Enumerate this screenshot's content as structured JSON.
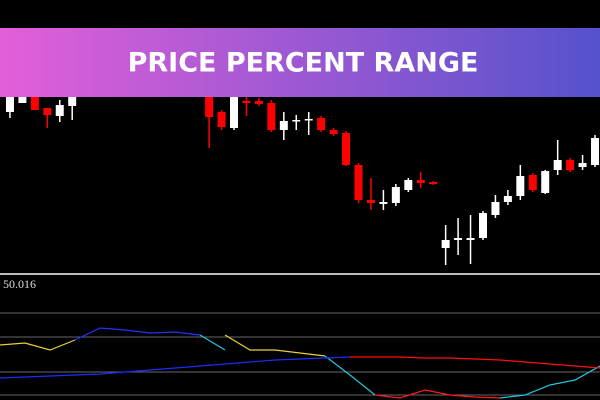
{
  "chart_data": [
    {
      "type": "candlestick",
      "title": "PRICE PERCENT RANGE",
      "x": [
        0,
        1,
        2,
        3,
        4,
        5,
        16,
        17,
        18,
        19,
        20,
        21,
        22,
        23,
        24,
        25,
        26,
        27,
        28,
        29,
        30,
        31,
        32,
        33,
        34,
        35,
        36,
        37,
        38,
        39,
        40,
        41,
        42,
        43,
        44,
        45,
        46,
        47
      ],
      "open": [
        158,
        167,
        173,
        162,
        154,
        164,
        173,
        158,
        142,
        169,
        169,
        167,
        140,
        149,
        150,
        152,
        140,
        137,
        105,
        70,
        66,
        67,
        80,
        90,
        88,
        22,
        30,
        30,
        32,
        55,
        68,
        74,
        95,
        77,
        100,
        110,
        103,
        105
      ],
      "high": [
        178,
        173,
        175,
        162,
        170,
        176,
        178,
        160,
        176,
        173,
        172,
        170,
        158,
        155,
        158,
        154,
        142,
        139,
        107,
        92,
        80,
        86,
        92,
        98,
        89,
        45,
        52,
        55,
        59,
        75,
        80,
        105,
        97,
        100,
        130,
        112,
        115,
        135
      ],
      "low": [
        152,
        167,
        160,
        142,
        148,
        150,
        122,
        140,
        140,
        154,
        164,
        138,
        130,
        140,
        135,
        138,
        134,
        104,
        67,
        60,
        60,
        64,
        78,
        82,
        85,
        5,
        15,
        6,
        30,
        52,
        65,
        70,
        78,
        76,
        95,
        98,
        100,
        103
      ],
      "close": [
        173,
        173,
        160,
        155,
        165,
        173,
        153,
        143,
        173,
        167,
        166,
        140,
        149,
        150,
        151,
        140,
        136,
        105,
        70,
        67,
        68,
        83,
        90,
        87,
        86,
        30,
        32,
        32,
        57,
        68,
        74,
        94,
        80,
        99,
        110,
        100,
        107,
        132
      ],
      "up_color": "#ffffff",
      "down_color": "#ff0000",
      "xlim": [
        -0.8,
        47.4
      ],
      "ylim": [
        0,
        270
      ]
    },
    {
      "type": "line",
      "indicator_value": 50.016,
      "series": [
        {
          "color": "#e6d23c",
          "values": [
            55,
            57,
            50,
            60,
            null,
            null,
            null,
            null,
            null,
            65,
            50,
            50,
            47,
            44,
            null,
            null,
            null,
            null,
            null,
            null,
            null,
            null,
            null,
            null,
            null
          ]
        },
        {
          "color": "#2233ff",
          "values": [
            null,
            null,
            null,
            60,
            72,
            70,
            67,
            68,
            65,
            null,
            null,
            null,
            null,
            null,
            null,
            null,
            null,
            null,
            null,
            null,
            null,
            null,
            null,
            null,
            null
          ]
        },
        {
          "color": "#22c8e0",
          "values": [
            null,
            null,
            null,
            null,
            null,
            null,
            null,
            null,
            65,
            50,
            null,
            null,
            null,
            44,
            25,
            5,
            null,
            null,
            null,
            null,
            2,
            5,
            15,
            20,
            34
          ]
        },
        {
          "color": "#ff1a1a",
          "values": [
            null,
            null,
            null,
            null,
            null,
            null,
            null,
            null,
            null,
            null,
            null,
            null,
            null,
            null,
            null,
            5,
            2,
            10,
            5,
            3,
            2,
            null,
            null,
            null,
            null
          ]
        },
        {
          "color": "#1a2cff",
          "values": [
            22,
            23,
            24,
            25,
            26,
            28,
            30,
            32,
            34,
            36,
            38,
            40,
            41,
            42,
            43,
            null,
            null,
            null,
            null,
            null,
            null,
            null,
            null,
            null,
            null
          ]
        },
        {
          "color": "#ff1010",
          "values": [
            null,
            null,
            null,
            null,
            null,
            null,
            null,
            null,
            null,
            null,
            null,
            null,
            null,
            null,
            43,
            43,
            43,
            42,
            42,
            41,
            40,
            38,
            36,
            34,
            32
          ]
        }
      ],
      "levels": [
        87,
        63,
        28,
        5
      ],
      "xlim": [
        0,
        24
      ],
      "ylim": [
        0,
        125
      ]
    }
  ]
}
